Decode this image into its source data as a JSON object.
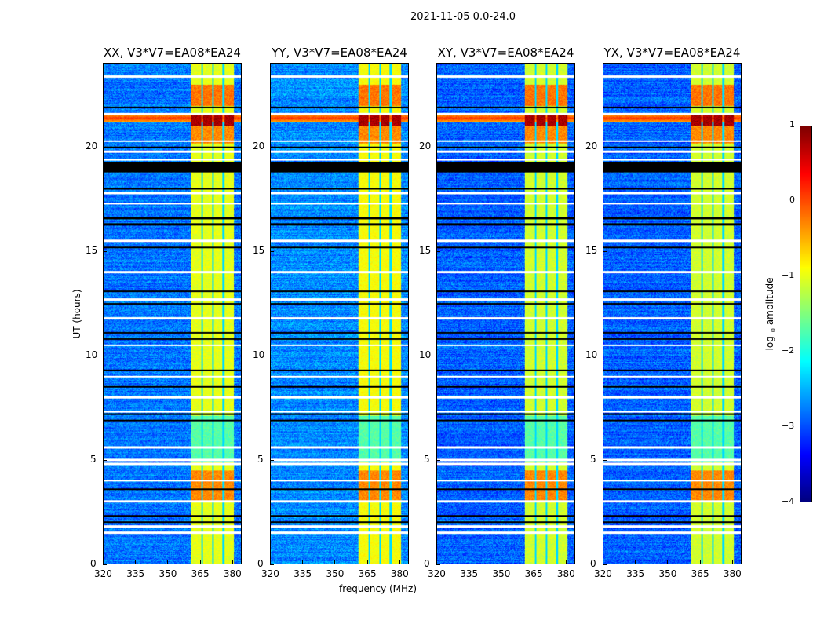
{
  "chart_data": {
    "type": "heatmap",
    "title": "2021-11-05 0.0-24.0",
    "xlabel": "frequency (MHz)",
    "ylabel": "UT (hours)",
    "xlim": [
      320,
      384.4
    ],
    "ylim": [
      0,
      24
    ],
    "xticks": [
      320,
      335,
      350,
      365,
      380
    ],
    "yticks": [
      0,
      5,
      10,
      15,
      20
    ],
    "colorbar": {
      "label": "log10 amplitude",
      "label_main": "log",
      "label_sub": "10",
      "label_rest": " amplitude",
      "range": [
        -4,
        1
      ],
      "ticks": [
        1,
        0,
        -1,
        -2,
        -3,
        -4
      ],
      "tick_labels": [
        "1",
        "0",
        "−1",
        "−2",
        "−3",
        "−4"
      ],
      "colormap": "jet"
    },
    "panels": [
      {
        "title": "XX, V3*V7=EA08*EA24",
        "background": -2.8,
        "band_level": -1.0
      },
      {
        "title": "YY, V3*V7=EA08*EA24",
        "background": -2.7,
        "band_level": -0.9
      },
      {
        "title": "XY, V3*V7=EA08*EA24",
        "background": -2.9,
        "band_level": -1.1
      },
      {
        "title": "YX, V3*V7=EA08*EA24",
        "background": -2.9,
        "band_level": -1.1
      }
    ],
    "rfi_band_mhz": [
      361,
      381
    ],
    "channel_gaps_mhz": [
      366,
      371,
      376
    ],
    "flagged_white_hours": [
      23.4,
      21.6,
      20.3,
      19.8,
      19.4,
      17.8,
      17.3,
      15.5,
      14.0,
      12.7,
      11.8,
      10.5,
      9.0,
      8.0,
      7.3,
      5.6,
      5.0,
      4.8,
      4.0,
      3.0,
      1.8,
      1.5
    ],
    "flagged_black_hours": [
      21.9,
      20.0,
      18.0,
      16.6,
      16.3,
      15.2,
      13.1,
      12.5,
      11.1,
      10.8,
      9.3,
      8.5,
      7.2,
      6.9,
      3.6,
      2.3,
      2.0
    ],
    "black_band_hours": [
      18.8,
      19.3
    ],
    "strong_rfi_hours": [
      [
        21.0,
        21.6,
        0.8
      ],
      [
        22.0,
        23.0,
        -0.2
      ],
      [
        20.2,
        21.0,
        -0.3
      ],
      [
        3.0,
        4.5,
        -0.3
      ]
    ],
    "weak_band_hours": [
      [
        4.9,
        7.1,
        -1.7
      ]
    ],
    "broadband_rfi_hours": [
      21.2,
      21.6
    ]
  }
}
